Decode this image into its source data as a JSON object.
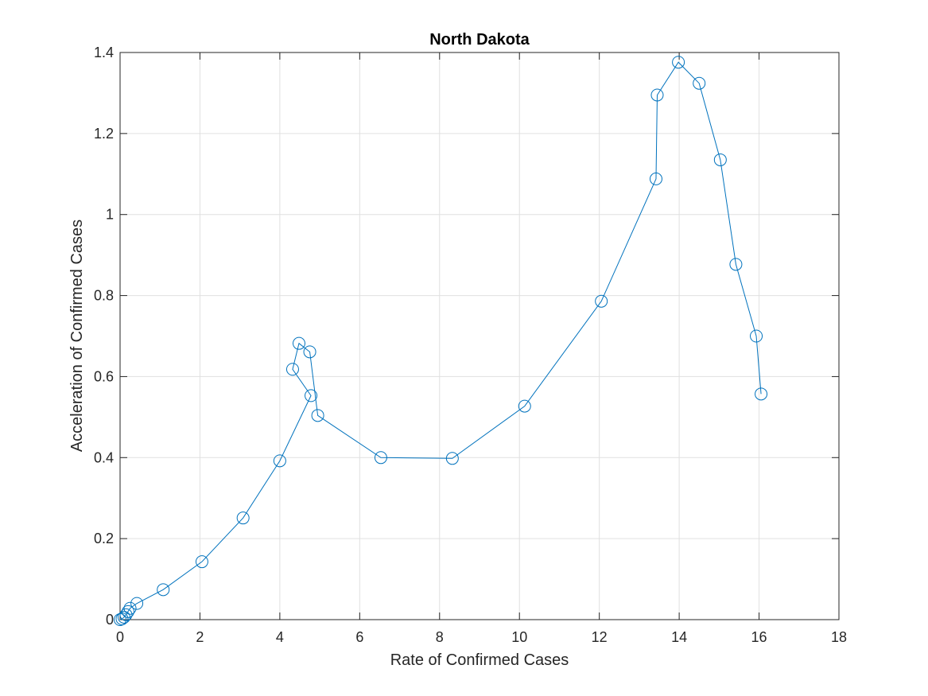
{
  "chart_data": {
    "type": "line",
    "title": "North Dakota",
    "xlabel": "Rate of Confirmed Cases",
    "ylabel": "Acceleration of Confirmed Cases",
    "xlim": [
      0,
      18
    ],
    "ylim": [
      0,
      1.4
    ],
    "xticks": [
      0,
      2,
      4,
      6,
      8,
      10,
      12,
      14,
      16,
      18
    ],
    "yticks": [
      0,
      0.2,
      0.4,
      0.6,
      0.8,
      1,
      1.2,
      1.4
    ],
    "xtick_labels": [
      "0",
      "2",
      "4",
      "6",
      "8",
      "10",
      "12",
      "14",
      "16",
      "18"
    ],
    "ytick_labels": [
      "0",
      "0.2",
      "0.4",
      "0.6",
      "0.8",
      "1",
      "1.2",
      "1.4"
    ],
    "grid": true,
    "marker": "circle",
    "color": "#0072BD",
    "series": [
      {
        "x": [
          0.0,
          0.05,
          0.1,
          0.15,
          0.2,
          0.25,
          0.42,
          1.08,
          2.05,
          3.08,
          4.0,
          4.78,
          4.32,
          4.48,
          4.75,
          4.95,
          6.53,
          8.32,
          10.13,
          12.05,
          13.42,
          13.45,
          13.98,
          14.5,
          15.03,
          15.42,
          15.93,
          16.05
        ],
        "y": [
          0.0,
          0.002,
          0.006,
          0.012,
          0.02,
          0.028,
          0.04,
          0.074,
          0.143,
          0.251,
          0.392,
          0.553,
          0.618,
          0.682,
          0.661,
          0.504,
          0.4,
          0.398,
          0.527,
          0.786,
          1.088,
          1.295,
          1.376,
          1.324,
          1.135,
          0.877,
          0.7,
          0.557
        ]
      }
    ]
  }
}
